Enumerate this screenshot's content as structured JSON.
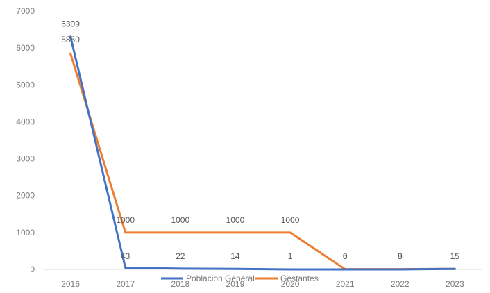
{
  "chart_data": {
    "type": "line",
    "title": "",
    "xlabel": "",
    "ylabel": "",
    "categories": [
      "2016",
      "2017",
      "2018",
      "2019",
      "2020",
      "2021",
      "2022",
      "2023"
    ],
    "ylim": [
      0,
      7000
    ],
    "yticks": [
      0,
      1000,
      2000,
      3000,
      4000,
      5000,
      6000,
      7000
    ],
    "grid": false,
    "legend_position": "bottom",
    "series": [
      {
        "name": "Poblacion General",
        "color": "#4472C4",
        "values": [
          6309,
          43,
          22,
          14,
          1,
          0,
          0,
          15
        ],
        "labels": [
          "6309",
          "43",
          "22",
          "14",
          "1",
          "0",
          "0",
          "15"
        ]
      },
      {
        "name": "Gestantes",
        "color": "#ED7D31",
        "values": [
          5850,
          1000,
          1000,
          1000,
          1000,
          6,
          8,
          15
        ],
        "labels": [
          "5850",
          "1000",
          "1000",
          "1000",
          "1000",
          "6",
          "8",
          "15"
        ]
      }
    ]
  }
}
